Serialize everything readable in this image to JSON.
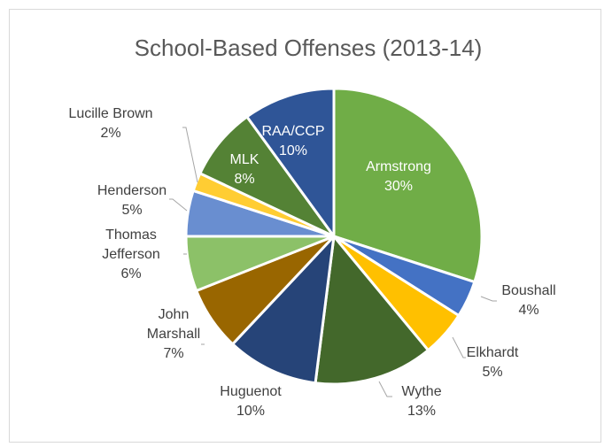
{
  "chart_data": {
    "type": "pie",
    "title": "School-Based Offenses (2013-14)",
    "start_angle_deg": 0,
    "direction": "clockwise",
    "slices": [
      {
        "name": "Armstrong",
        "value": 30,
        "label": "30%",
        "color": "#70ad47",
        "label_inside": true
      },
      {
        "name": "Boushall",
        "value": 4,
        "label": "4%",
        "color": "#4472c4",
        "label_inside": false
      },
      {
        "name": "Elkhardt",
        "value": 5,
        "label": "5%",
        "color": "#ffc000",
        "label_inside": false
      },
      {
        "name": "Wythe",
        "value": 13,
        "label": "13%",
        "color": "#43682b",
        "label_inside": false
      },
      {
        "name": "Huguenot",
        "value": 10,
        "label": "10%",
        "color": "#264478",
        "label_inside": false
      },
      {
        "name": "John Marshall",
        "value": 7,
        "label": "7%",
        "color": "#996600",
        "label_inside": false
      },
      {
        "name": "Thomas Jefferson",
        "value": 6,
        "label": "6%",
        "color": "#8cc168",
        "label_inside": false
      },
      {
        "name": "Henderson",
        "value": 5,
        "label": "5%",
        "color": "#698ed0",
        "label_inside": false
      },
      {
        "name": "Lucille Brown",
        "value": 2,
        "label": "2%",
        "color": "#ffcd33",
        "label_inside": false
      },
      {
        "name": "MLK",
        "value": 8,
        "label": "8%",
        "color": "#548235",
        "label_inside": true
      },
      {
        "name": "RAA/CCP",
        "value": 10,
        "label": "10%",
        "color": "#2f5597",
        "label_inside": true
      }
    ]
  }
}
